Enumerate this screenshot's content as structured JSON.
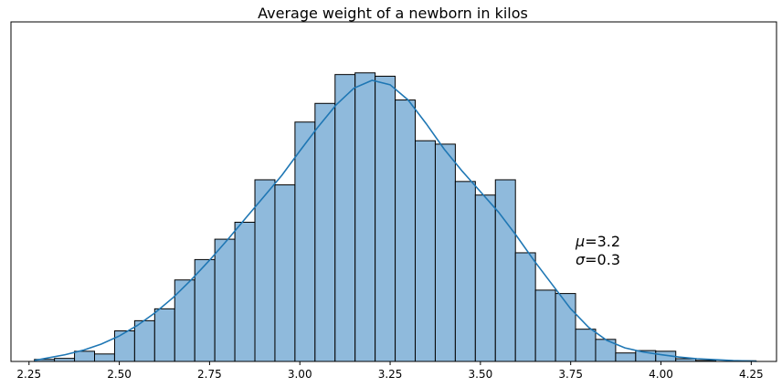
{
  "chart_data": {
    "type": "histogram",
    "title": "Average weight of a newborn in kilos",
    "xlabel": "",
    "ylabel": "",
    "xlim": [
      2.2,
      4.32
    ],
    "ylim": [
      0,
      100
    ],
    "x_ticks": [
      "2.25",
      "2.50",
      "2.75",
      "3.00",
      "3.25",
      "3.50",
      "3.75",
      "4.00",
      "4.25"
    ],
    "x_tick_values": [
      2.25,
      2.5,
      2.75,
      3.0,
      3.25,
      3.5,
      3.75,
      4.0,
      4.25
    ],
    "bins": [
      2.265,
      2.3205,
      2.376,
      2.4315,
      2.487,
      2.5425,
      2.598,
      2.6535,
      2.709,
      2.7645,
      2.82,
      2.8755,
      2.931,
      2.9865,
      3.042,
      3.0975,
      3.153,
      3.2085,
      3.264,
      3.3195,
      3.375,
      3.4305,
      3.486,
      3.5415,
      3.597,
      3.6525,
      3.708,
      3.7635,
      3.819,
      3.8745,
      3.93,
      3.9855,
      4.041,
      4.0965,
      4.152,
      4.2075,
      4.263
    ],
    "counts": [
      0.6,
      0.9,
      3.0,
      2.2,
      9.0,
      12.0,
      15.5,
      24.0,
      30.0,
      36.0,
      41.0,
      53.5,
      52.0,
      70.5,
      76.0,
      84.5,
      85.0,
      84.0,
      77.0,
      65.0,
      64.0,
      53.0,
      49.0,
      53.5,
      32.0,
      21.0,
      20.0,
      9.5,
      6.5,
      2.5,
      3.2,
      3.0,
      0.8,
      0.3,
      0.0,
      0.2
    ],
    "kde": {
      "x": [
        2.265,
        2.3,
        2.35,
        2.4,
        2.45,
        2.5,
        2.55,
        2.6,
        2.65,
        2.7,
        2.75,
        2.8,
        2.85,
        2.9,
        2.95,
        3.0,
        3.05,
        3.1,
        3.15,
        3.2,
        3.25,
        3.3,
        3.35,
        3.4,
        3.45,
        3.5,
        3.55,
        3.6,
        3.65,
        3.7,
        3.75,
        3.8,
        3.85,
        3.9,
        3.95,
        4.0,
        4.05,
        4.1,
        4.15,
        4.2,
        4.25,
        4.265
      ],
      "y": [
        0.3,
        1.0,
        2.0,
        3.3,
        5.1,
        7.5,
        10.6,
        14.4,
        18.9,
        24.1,
        29.8,
        35.9,
        42.2,
        48.5,
        54.8,
        62.0,
        69.0,
        75.5,
        80.5,
        82.8,
        81.5,
        77.0,
        70.0,
        62.5,
        56.0,
        50.0,
        44.0,
        37.0,
        29.5,
        22.5,
        15.5,
        10.0,
        6.2,
        4.0,
        2.8,
        2.0,
        1.3,
        0.8,
        0.5,
        0.25,
        0.1,
        0.05
      ]
    },
    "bar_color": "#8fbadc",
    "bar_edge_color": "#000000",
    "kde_color": "#1f77b4",
    "grid": false,
    "annotation": {
      "mu_symbol": "μ",
      "mu_value": "=3.2",
      "sigma_symbol": "σ",
      "sigma_value": "=0.3"
    }
  }
}
